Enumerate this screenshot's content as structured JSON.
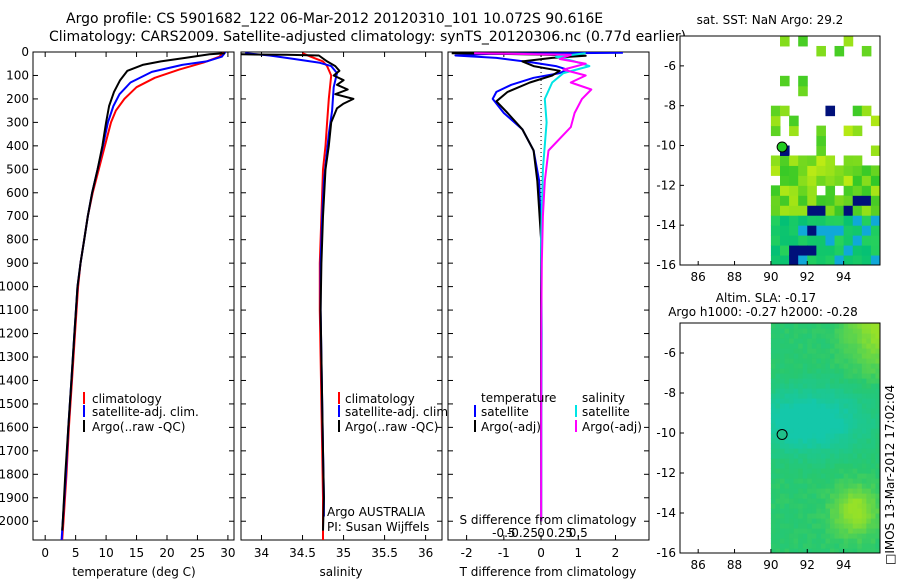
{
  "header": {
    "line1": "Argo profile: CS 5901682_122 06-Mar-2012 20120310_101 10.072S 90.616E",
    "line2": "Climatology: CARS2009. Satellite-adjusted climatology: synTS_20120306.nc (0.77d earlier)"
  },
  "side_stamp": "□IMOS 13-Mar-2012 17:02:04",
  "colors": {
    "climatology": "#ff0000",
    "satellite": "#0000ff",
    "argo": "#000000",
    "salinity_satellite": "#00e5e5",
    "salinity_argo": "#ff00ff",
    "sst_green": "#22cc22",
    "sst_navy": "#00107a"
  },
  "chart_data": [
    {
      "id": "temperature",
      "type": "line",
      "xlabel": "temperature (deg C)",
      "ylabel": "",
      "xlim": [
        -2,
        31
      ],
      "ylim": [
        2080,
        0
      ],
      "xticks": [
        0,
        5,
        10,
        15,
        20,
        25,
        30
      ],
      "xtick_labels": [
        "0",
        "5",
        "10",
        "15",
        "20",
        "25",
        "30"
      ],
      "yticks": [
        0,
        100,
        200,
        300,
        400,
        500,
        600,
        700,
        800,
        900,
        1000,
        1100,
        1200,
        1300,
        1400,
        1500,
        1600,
        1700,
        1800,
        1900,
        2000
      ],
      "ytick_labels": [
        "0",
        "100",
        "200",
        "300",
        "400",
        "500",
        "600",
        "700",
        "800",
        "900",
        "1000",
        "1100",
        "1200",
        "1300",
        "1400",
        "1500",
        "1600",
        "1700",
        "1800",
        "1900",
        "2000"
      ],
      "legend": [
        "climatology",
        "satellite-adj. clim.",
        "Argo(..raw -QC)"
      ],
      "series": [
        {
          "name": "climatology",
          "color": "#ff0000",
          "points": [
            [
              29.3,
              0
            ],
            [
              28.6,
              20
            ],
            [
              26,
              45
            ],
            [
              22,
              75
            ],
            [
              18,
              110
            ],
            [
              15,
              150
            ],
            [
              13,
              200
            ],
            [
              11.6,
              250
            ],
            [
              10.8,
              300
            ],
            [
              9.8,
              400
            ],
            [
              8.8,
              500
            ],
            [
              7.8,
              600
            ],
            [
              7,
              700
            ],
            [
              6.4,
              800
            ],
            [
              5.8,
              900
            ],
            [
              5.4,
              1000
            ],
            [
              4.9,
              1200
            ],
            [
              4.4,
              1400
            ],
            [
              3.9,
              1600
            ],
            [
              3.5,
              1800
            ],
            [
              3,
              2000
            ],
            [
              2.8,
              2080
            ]
          ]
        },
        {
          "name": "satellite-adj. clim.",
          "color": "#0000ff",
          "points": [
            [
              29.6,
              0
            ],
            [
              29,
              20
            ],
            [
              26.5,
              40
            ],
            [
              22.5,
              55
            ],
            [
              17.5,
              85
            ],
            [
              14,
              130
            ],
            [
              12.2,
              180
            ],
            [
              11.2,
              230
            ],
            [
              10.3,
              300
            ],
            [
              9.5,
              400
            ],
            [
              8.6,
              500
            ],
            [
              7.7,
              600
            ],
            [
              7,
              700
            ],
            [
              6.4,
              800
            ],
            [
              5.8,
              900
            ],
            [
              5.3,
              1000
            ],
            [
              4.8,
              1200
            ],
            [
              4.3,
              1400
            ],
            [
              3.8,
              1600
            ],
            [
              3.4,
              1800
            ],
            [
              2.9,
              2000
            ],
            [
              2.7,
              2080
            ]
          ]
        },
        {
          "name": "Argo(..raw -QC)",
          "color": "#000000",
          "points": [
            [
              29.5,
              5
            ],
            [
              27,
              10
            ],
            [
              23,
              25
            ],
            [
              19,
              40
            ],
            [
              16,
              55
            ],
            [
              13.5,
              80
            ],
            [
              12.3,
              120
            ],
            [
              11.3,
              170
            ],
            [
              10.5,
              230
            ],
            [
              10,
              300
            ],
            [
              9.4,
              400
            ],
            [
              8.6,
              500
            ],
            [
              7.7,
              600
            ],
            [
              7,
              700
            ],
            [
              6.4,
              800
            ],
            [
              5.8,
              900
            ],
            [
              5.3,
              1000
            ],
            [
              4.8,
              1200
            ],
            [
              4.3,
              1400
            ],
            [
              3.8,
              1600
            ],
            [
              3.3,
              1800
            ],
            [
              2.9,
              2000
            ],
            [
              2.8,
              2040
            ]
          ]
        }
      ]
    },
    {
      "id": "salinity",
      "type": "line",
      "xlabel": "salinity",
      "xlim": [
        33.75,
        36.2
      ],
      "ylim": [
        2080,
        0
      ],
      "xticks": [
        34,
        34.5,
        35,
        35.5,
        36
      ],
      "xtick_labels": [
        "34",
        "34.5",
        "35",
        "35.5",
        "36"
      ],
      "legend": [
        "climatology",
        "satellite-adj. clim.",
        "Argo(..raw -QC)"
      ],
      "annotations": [
        "Argo AUSTRALIA",
        "PI: Susan Wijffels"
      ],
      "series": [
        {
          "name": "climatology",
          "color": "#ff0000",
          "points": [
            [
              34.5,
              5
            ],
            [
              34.6,
              20
            ],
            [
              34.75,
              40
            ],
            [
              34.8,
              60
            ],
            [
              34.85,
              100
            ],
            [
              34.82,
              200
            ],
            [
              34.8,
              300
            ],
            [
              34.78,
              400
            ],
            [
              34.75,
              500
            ],
            [
              34.73,
              700
            ],
            [
              34.71,
              900
            ],
            [
              34.71,
              1100
            ],
            [
              34.72,
              1300
            ],
            [
              34.73,
              1500
            ],
            [
              34.74,
              1700
            ],
            [
              34.75,
              1900
            ],
            [
              34.75,
              2080
            ]
          ]
        },
        {
          "name": "satellite-adj. clim.",
          "color": "#0000ff",
          "points": [
            [
              33.8,
              5
            ],
            [
              34.1,
              15
            ],
            [
              34.4,
              30
            ],
            [
              34.7,
              45
            ],
            [
              34.85,
              60
            ],
            [
              34.92,
              90
            ],
            [
              34.88,
              150
            ],
            [
              34.86,
              250
            ],
            [
              34.82,
              350
            ],
            [
              34.79,
              450
            ],
            [
              34.76,
              550
            ],
            [
              34.74,
              700
            ],
            [
              34.72,
              900
            ],
            [
              34.72,
              1100
            ],
            [
              34.73,
              1300
            ],
            [
              34.74,
              1500
            ],
            [
              34.75,
              1700
            ],
            [
              34.76,
              1900
            ],
            [
              34.76,
              1980
            ]
          ]
        },
        {
          "name": "Argo(..raw -QC)",
          "color": "#000000",
          "points": [
            [
              33.75,
              10
            ],
            [
              34.3,
              12
            ],
            [
              34.7,
              15
            ],
            [
              34.8,
              40
            ],
            [
              34.9,
              60
            ],
            [
              34.95,
              80
            ],
            [
              34.88,
              100
            ],
            [
              35.0,
              120
            ],
            [
              34.92,
              140
            ],
            [
              35.05,
              160
            ],
            [
              34.9,
              180
            ],
            [
              35.12,
              200
            ],
            [
              35.0,
              220
            ],
            [
              34.92,
              240
            ],
            [
              34.85,
              300
            ],
            [
              34.82,
              400
            ],
            [
              34.78,
              500
            ],
            [
              34.75,
              700
            ],
            [
              34.73,
              900
            ],
            [
              34.72,
              1100
            ],
            [
              34.73,
              1300
            ],
            [
              34.74,
              1500
            ],
            [
              34.75,
              1700
            ],
            [
              34.76,
              1900
            ],
            [
              34.75,
              2040
            ]
          ]
        }
      ]
    },
    {
      "id": "difference",
      "type": "line",
      "xlabel": "T difference from climatology",
      "xlabel_top": "S difference from climatology",
      "xlim": [
        -2.5,
        2.9
      ],
      "ylim": [
        2080,
        0
      ],
      "xticks": [
        -2,
        -1,
        0,
        1,
        2
      ],
      "xtick_labels": [
        "-2",
        "-1",
        "0",
        "1",
        "2"
      ],
      "s_ticks": [
        -0.5,
        -0.25,
        0,
        0.25,
        0.5
      ],
      "s_tick_labels": [
        "-0.5",
        "-0.25",
        "0",
        "0.25",
        "0.5"
      ],
      "legend": {
        "temperature_header": "temperature",
        "salinity_header": "salinity",
        "temperature": [
          "satellite",
          "Argo(-adj)"
        ],
        "salinity": [
          "satellite",
          "Argo(-adj)"
        ]
      },
      "series": [
        {
          "name": "temperature satellite",
          "color": "#0000ff",
          "points": [
            [
              2.2,
              3
            ],
            [
              -1.4,
              8
            ],
            [
              -2.3,
              15
            ],
            [
              -1.2,
              25
            ],
            [
              -0.2,
              45
            ],
            [
              0.4,
              60
            ],
            [
              0.7,
              75
            ],
            [
              0.5,
              90
            ],
            [
              -0.2,
              110
            ],
            [
              -0.8,
              140
            ],
            [
              -1.2,
              170
            ],
            [
              -1.3,
              200
            ],
            [
              -1.0,
              260
            ],
            [
              -0.5,
              330
            ],
            [
              -0.2,
              420
            ],
            [
              -0.05,
              550
            ],
            [
              0,
              800
            ],
            [
              0,
              2000
            ]
          ]
        },
        {
          "name": "temperature Argo(-adj)",
          "color": "#000000",
          "points": [
            [
              -2.4,
              5
            ],
            [
              -1,
              8
            ],
            [
              0.2,
              12
            ],
            [
              1.2,
              16
            ],
            [
              0.3,
              25
            ],
            [
              -0.5,
              40
            ],
            [
              -0.2,
              60
            ],
            [
              0.5,
              80
            ],
            [
              0.3,
              100
            ],
            [
              -0.3,
              130
            ],
            [
              -0.9,
              170
            ],
            [
              -1.2,
              210
            ],
            [
              -0.9,
              260
            ],
            [
              -0.5,
              330
            ],
            [
              -0.2,
              420
            ],
            [
              -0.1,
              550
            ],
            [
              0,
              800
            ],
            [
              0,
              2000
            ]
          ]
        },
        {
          "name": "salinity satellite",
          "color": "#00e5e5",
          "points": [
            [
              1.2,
              5
            ],
            [
              0.4,
              20
            ],
            [
              0.9,
              40
            ],
            [
              1.3,
              60
            ],
            [
              0.6,
              90
            ],
            [
              0.3,
              130
            ],
            [
              0.1,
              200
            ],
            [
              0.15,
              300
            ],
            [
              0.05,
              500
            ],
            [
              0,
              800
            ],
            [
              0.02,
              1200
            ],
            [
              0,
              2000
            ]
          ]
        },
        {
          "name": "salinity Argo(-adj)",
          "color": "#ff00ff",
          "points": [
            [
              -1.8,
              5
            ],
            [
              0.8,
              12
            ],
            [
              0.5,
              30
            ],
            [
              1.2,
              50
            ],
            [
              0.6,
              75
            ],
            [
              1.2,
              100
            ],
            [
              0.8,
              130
            ],
            [
              1.35,
              160
            ],
            [
              1.1,
              200
            ],
            [
              0.9,
              260
            ],
            [
              0.8,
              320
            ],
            [
              0.2,
              420
            ],
            [
              0.1,
              550
            ],
            [
              0.05,
              700
            ],
            [
              0.02,
              900
            ],
            [
              0.01,
              1100
            ],
            [
              0,
              2000
            ]
          ]
        }
      ]
    },
    {
      "id": "sst-map",
      "type": "heatmap",
      "title": "sat. SST: NaN Argo: 29.2",
      "xlim": [
        85,
        96
      ],
      "ylim": [
        -16,
        -4.5
      ],
      "xticks": [
        86,
        88,
        90,
        92,
        94
      ],
      "xtick_labels": [
        "86",
        "88",
        "90",
        "92",
        "94"
      ],
      "yticks": [
        -6,
        -8,
        -10,
        -12,
        -14,
        -16
      ],
      "ytick_labels": [
        "-6",
        "-8",
        "-10",
        "-12",
        "-14",
        "-16"
      ],
      "argo_position": [
        90.616,
        -10.072
      ]
    },
    {
      "id": "sla-map",
      "type": "heatmap",
      "title_line1": "Altim. SLA: -0.17",
      "title_line2": "Argo h1000: -0.27 h2000: -0.28",
      "xlim": [
        85,
        96
      ],
      "ylim": [
        -16,
        -4.5
      ],
      "xticks": [
        86,
        88,
        90,
        92,
        94
      ],
      "xtick_labels": [
        "86",
        "88",
        "90",
        "92",
        "94"
      ],
      "yticks": [
        -6,
        -8,
        -10,
        -12,
        -14,
        -16
      ],
      "ytick_labels": [
        "-6",
        "-8",
        "-10",
        "-12",
        "-14",
        "-16"
      ],
      "argo_position": [
        90.616,
        -10.072
      ]
    }
  ]
}
